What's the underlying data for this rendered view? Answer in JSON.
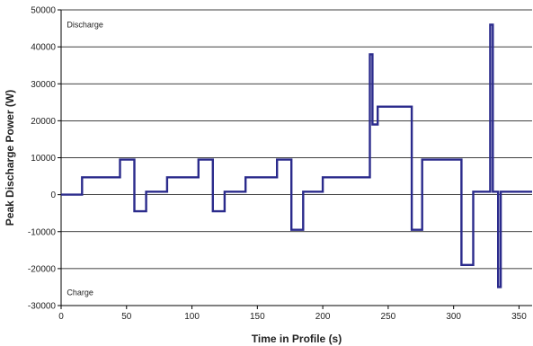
{
  "chart_data": {
    "type": "line",
    "title": "",
    "xlabel": "Time in Profile (s)",
    "ylabel": "Peak Discharge Power (W)",
    "xlim": [
      0,
      360
    ],
    "ylim": [
      -30000,
      50000
    ],
    "x_ticks": [
      0,
      50,
      100,
      150,
      200,
      250,
      300,
      350
    ],
    "y_ticks": [
      -30000,
      -20000,
      -10000,
      0,
      10000,
      20000,
      30000,
      40000,
      50000
    ],
    "grid": "horizontal",
    "plot_background": "#ffffff",
    "annotations": [
      {
        "text": "Discharge",
        "x": 3,
        "y": 46000
      },
      {
        "text": "Charge",
        "x": 3,
        "y": -26500
      }
    ],
    "series": [
      {
        "color": "#2b2b8c",
        "step": true,
        "x": [
          0,
          16,
          45,
          56,
          65,
          81,
          105,
          116,
          125,
          141,
          165,
          176,
          185,
          200,
          236,
          238,
          242,
          252,
          268,
          276,
          306,
          315,
          328,
          330,
          334,
          336,
          360
        ],
        "y": [
          0,
          4700,
          9500,
          -4500,
          800,
          4700,
          9500,
          -4500,
          800,
          4700,
          9500,
          -9500,
          800,
          4700,
          38000,
          19000,
          23800,
          23800,
          -9500,
          9500,
          -19000,
          800,
          46000,
          800,
          -25000,
          800,
          800
        ]
      }
    ]
  }
}
